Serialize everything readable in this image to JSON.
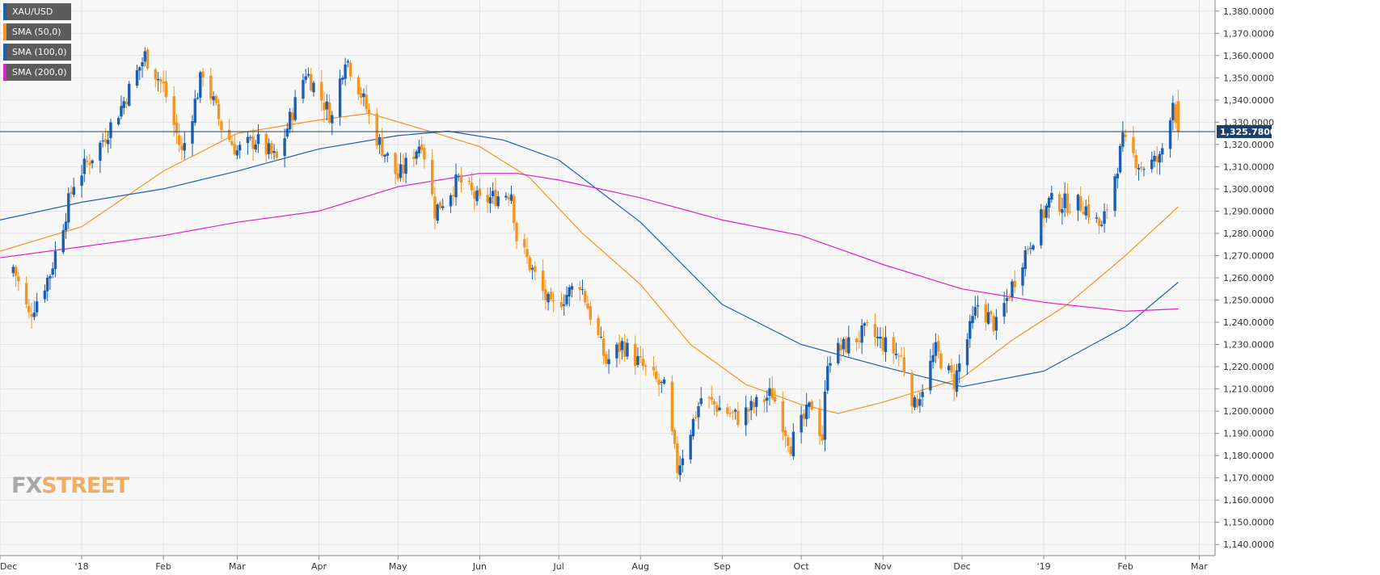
{
  "colors": {
    "up": "#1a5fb4",
    "down": "#f7941d",
    "sma50": "#f7941d",
    "sma100": "#1a5fb4",
    "sma200": "#e020d0",
    "price_line": "#1d3f6e",
    "grid": "#e2e2e2",
    "plot_bg": "#f7f7f7"
  },
  "legend": [
    {
      "label": "XAU/USD",
      "color": "#1a5fb4"
    },
    {
      "label": "SMA (50,0)",
      "color": "#f7941d"
    },
    {
      "label": "SMA (100,0)",
      "color": "#1a5fb4"
    },
    {
      "label": "SMA (200,0)",
      "color": "#e020d0"
    }
  ],
  "brand": {
    "part1": "FX",
    "part2": "STREET"
  },
  "chart_data": {
    "type": "candlestick",
    "symbol": "XAU/USD",
    "interval": "daily",
    "ylim": [
      1135,
      1385
    ],
    "y_ticks": [
      "1,140.0000",
      "1,150.0000",
      "1,160.0000",
      "1,170.0000",
      "1,180.0000",
      "1,190.0000",
      "1,200.0000",
      "1,210.0000",
      "1,220.0000",
      "1,230.0000",
      "1,240.0000",
      "1,250.0000",
      "1,260.0000",
      "1,270.0000",
      "1,280.0000",
      "1,290.0000",
      "1,300.0000",
      "1,310.0000",
      "1,320.0000",
      "1,330.0000",
      "1,340.0000",
      "1,350.0000",
      "1,360.0000",
      "1,370.0000",
      "1,380.0000"
    ],
    "x_ticks": [
      {
        "label": "Dec",
        "date": "2017-12-01"
      },
      {
        "label": "'18",
        "date": "2018-01-01"
      },
      {
        "label": "Feb",
        "date": "2018-02-01"
      },
      {
        "label": "Mar",
        "date": "2018-03-01"
      },
      {
        "label": "Apr",
        "date": "2018-04-01"
      },
      {
        "label": "May",
        "date": "2018-05-01"
      },
      {
        "label": "Jun",
        "date": "2018-06-01"
      },
      {
        "label": "Jul",
        "date": "2018-07-01"
      },
      {
        "label": "Aug",
        "date": "2018-08-01"
      },
      {
        "label": "Sep",
        "date": "2018-09-01"
      },
      {
        "label": "Oct",
        "date": "2018-10-01"
      },
      {
        "label": "Nov",
        "date": "2018-11-01"
      },
      {
        "label": "Dec",
        "date": "2018-12-01"
      },
      {
        "label": "'19",
        "date": "2019-01-01"
      },
      {
        "label": "Feb",
        "date": "2019-02-01"
      },
      {
        "label": "Mar",
        "date": "2019-03-01"
      }
    ],
    "x_range": [
      "2017-12-01",
      "2019-03-07"
    ],
    "last_price": 1325.78,
    "last_price_label": "1,325.78000",
    "price_waypoints": [
      {
        "date": "2017-12-06",
        "close": 1265
      },
      {
        "date": "2017-12-12",
        "close": 1243
      },
      {
        "date": "2017-12-20",
        "close": 1262
      },
      {
        "date": "2017-12-29",
        "close": 1303
      },
      {
        "date": "2018-01-08",
        "close": 1320
      },
      {
        "date": "2018-01-16",
        "close": 1337
      },
      {
        "date": "2018-01-25",
        "close": 1360
      },
      {
        "date": "2018-02-01",
        "close": 1346
      },
      {
        "date": "2018-02-08",
        "close": 1316
      },
      {
        "date": "2018-02-16",
        "close": 1353
      },
      {
        "date": "2018-02-23",
        "close": 1328
      },
      {
        "date": "2018-03-01",
        "close": 1317
      },
      {
        "date": "2018-03-08",
        "close": 1322
      },
      {
        "date": "2018-03-16",
        "close": 1313
      },
      {
        "date": "2018-03-27",
        "close": 1353
      },
      {
        "date": "2018-04-06",
        "close": 1332
      },
      {
        "date": "2018-04-11",
        "close": 1360
      },
      {
        "date": "2018-04-16",
        "close": 1346
      },
      {
        "date": "2018-04-23",
        "close": 1323
      },
      {
        "date": "2018-05-01",
        "close": 1305
      },
      {
        "date": "2018-05-10",
        "close": 1322
      },
      {
        "date": "2018-05-15",
        "close": 1290
      },
      {
        "date": "2018-05-24",
        "close": 1304
      },
      {
        "date": "2018-06-01",
        "close": 1294
      },
      {
        "date": "2018-06-13",
        "close": 1299
      },
      {
        "date": "2018-06-15",
        "close": 1278
      },
      {
        "date": "2018-06-28",
        "close": 1246
      },
      {
        "date": "2018-07-09",
        "close": 1258
      },
      {
        "date": "2018-07-19",
        "close": 1222
      },
      {
        "date": "2018-07-25",
        "close": 1230
      },
      {
        "date": "2018-08-08",
        "close": 1212
      },
      {
        "date": "2018-08-10",
        "close": 1210
      },
      {
        "date": "2018-08-15",
        "close": 1174
      },
      {
        "date": "2018-08-24",
        "close": 1206
      },
      {
        "date": "2018-09-07",
        "close": 1197
      },
      {
        "date": "2018-09-20",
        "close": 1208
      },
      {
        "date": "2018-09-27",
        "close": 1185
      },
      {
        "date": "2018-10-05",
        "close": 1203
      },
      {
        "date": "2018-10-09",
        "close": 1188
      },
      {
        "date": "2018-10-11",
        "close": 1224
      },
      {
        "date": "2018-10-26",
        "close": 1236
      },
      {
        "date": "2018-11-08",
        "close": 1224
      },
      {
        "date": "2018-11-13",
        "close": 1202
      },
      {
        "date": "2018-11-21",
        "close": 1227
      },
      {
        "date": "2018-11-28",
        "close": 1213
      },
      {
        "date": "2018-12-07",
        "close": 1248
      },
      {
        "date": "2018-12-14",
        "close": 1238
      },
      {
        "date": "2018-12-24",
        "close": 1269
      },
      {
        "date": "2019-01-03",
        "close": 1294
      },
      {
        "date": "2019-01-16",
        "close": 1293
      },
      {
        "date": "2019-01-23",
        "close": 1282
      },
      {
        "date": "2019-01-31",
        "close": 1321
      },
      {
        "date": "2019-02-07",
        "close": 1310
      },
      {
        "date": "2019-02-14",
        "close": 1313
      },
      {
        "date": "2019-02-19",
        "close": 1340
      },
      {
        "date": "2019-02-21",
        "close": 1325.78
      }
    ],
    "series": [
      {
        "name": "SMA (50,0)",
        "points": [
          {
            "date": "2017-12-01",
            "value": 1272
          },
          {
            "date": "2018-01-01",
            "value": 1283
          },
          {
            "date": "2018-02-01",
            "value": 1308
          },
          {
            "date": "2018-03-01",
            "value": 1325
          },
          {
            "date": "2018-04-01",
            "value": 1331
          },
          {
            "date": "2018-04-20",
            "value": 1334
          },
          {
            "date": "2018-05-10",
            "value": 1327
          },
          {
            "date": "2018-06-01",
            "value": 1319
          },
          {
            "date": "2018-06-20",
            "value": 1305
          },
          {
            "date": "2018-07-10",
            "value": 1280
          },
          {
            "date": "2018-08-01",
            "value": 1257
          },
          {
            "date": "2018-08-20",
            "value": 1230
          },
          {
            "date": "2018-09-10",
            "value": 1212
          },
          {
            "date": "2018-10-01",
            "value": 1203
          },
          {
            "date": "2018-10-15",
            "value": 1199
          },
          {
            "date": "2018-11-01",
            "value": 1204
          },
          {
            "date": "2018-12-01",
            "value": 1215
          },
          {
            "date": "2018-12-20",
            "value": 1232
          },
          {
            "date": "2019-01-10",
            "value": 1248
          },
          {
            "date": "2019-02-01",
            "value": 1270
          },
          {
            "date": "2019-02-21",
            "value": 1292
          }
        ]
      },
      {
        "name": "SMA (100,0)",
        "points": [
          {
            "date": "2017-12-01",
            "value": 1286
          },
          {
            "date": "2018-01-01",
            "value": 1294
          },
          {
            "date": "2018-02-01",
            "value": 1300
          },
          {
            "date": "2018-03-01",
            "value": 1308
          },
          {
            "date": "2018-04-01",
            "value": 1318
          },
          {
            "date": "2018-05-01",
            "value": 1324
          },
          {
            "date": "2018-05-20",
            "value": 1326
          },
          {
            "date": "2018-06-10",
            "value": 1322
          },
          {
            "date": "2018-07-01",
            "value": 1313
          },
          {
            "date": "2018-08-01",
            "value": 1285
          },
          {
            "date": "2018-09-01",
            "value": 1248
          },
          {
            "date": "2018-10-01",
            "value": 1230
          },
          {
            "date": "2018-11-01",
            "value": 1220
          },
          {
            "date": "2018-12-01",
            "value": 1211
          },
          {
            "date": "2019-01-01",
            "value": 1218
          },
          {
            "date": "2019-02-01",
            "value": 1238
          },
          {
            "date": "2019-02-21",
            "value": 1258
          }
        ]
      },
      {
        "name": "SMA (200,0)",
        "points": [
          {
            "date": "2017-12-01",
            "value": 1269
          },
          {
            "date": "2018-01-01",
            "value": 1274
          },
          {
            "date": "2018-02-01",
            "value": 1279
          },
          {
            "date": "2018-03-01",
            "value": 1285
          },
          {
            "date": "2018-04-01",
            "value": 1290
          },
          {
            "date": "2018-05-01",
            "value": 1301
          },
          {
            "date": "2018-06-01",
            "value": 1307
          },
          {
            "date": "2018-06-15",
            "value": 1307
          },
          {
            "date": "2018-07-01",
            "value": 1304
          },
          {
            "date": "2018-08-01",
            "value": 1296
          },
          {
            "date": "2018-09-01",
            "value": 1286
          },
          {
            "date": "2018-10-01",
            "value": 1279
          },
          {
            "date": "2018-11-01",
            "value": 1266
          },
          {
            "date": "2018-12-01",
            "value": 1255
          },
          {
            "date": "2019-01-01",
            "value": 1249
          },
          {
            "date": "2019-02-01",
            "value": 1245
          },
          {
            "date": "2019-02-21",
            "value": 1246
          }
        ]
      }
    ]
  }
}
